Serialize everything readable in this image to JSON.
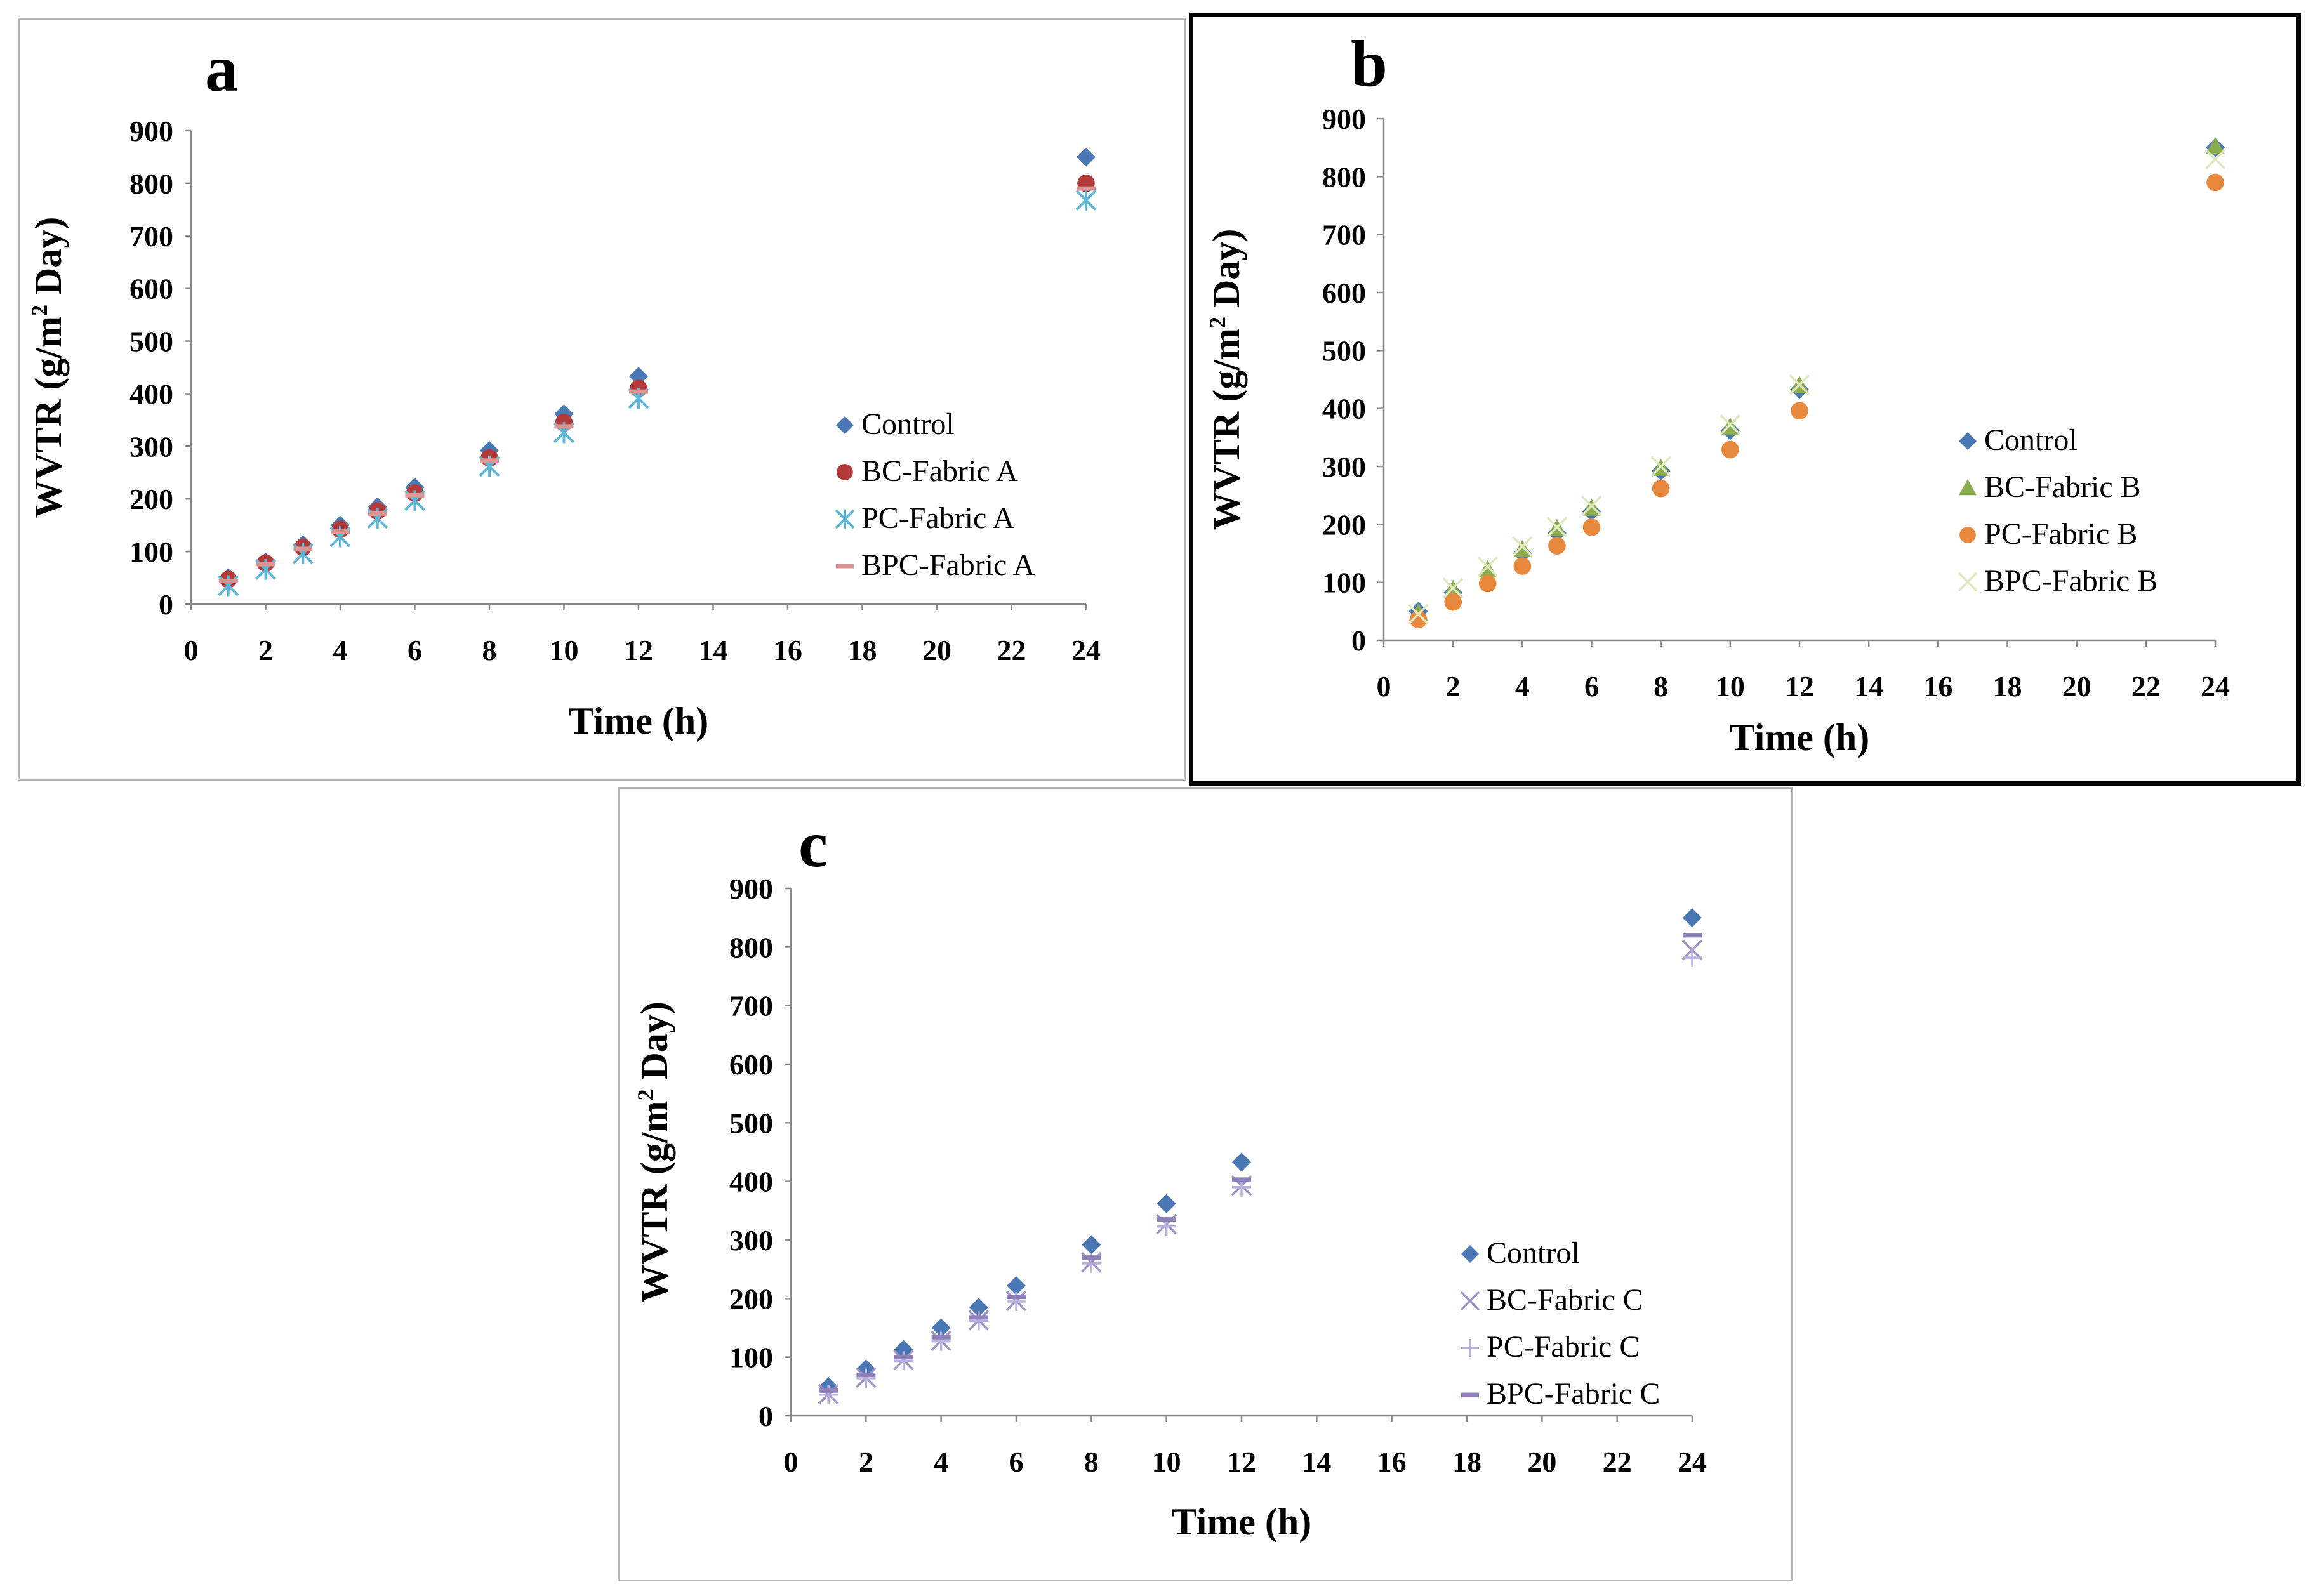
{
  "chart_data": [
    {
      "type": "scatter",
      "panel_label": "a",
      "title": "",
      "xlabel": "Time (h)",
      "ylabel": "WVTR (g/m² Day)",
      "ylabel_parts": [
        "WVTR (g/m",
        "2",
        " Day)"
      ],
      "xlim": [
        0,
        24
      ],
      "ylim": [
        0,
        900
      ],
      "xticks": [
        0,
        2,
        4,
        6,
        8,
        10,
        12,
        14,
        16,
        18,
        20,
        22,
        24
      ],
      "yticks": [
        0,
        100,
        200,
        300,
        400,
        500,
        600,
        700,
        800,
        900
      ],
      "grid": false,
      "legend_position": "right",
      "x": [
        1,
        2,
        3,
        4,
        5,
        6,
        8,
        10,
        12,
        24
      ],
      "series": [
        {
          "name": "Control",
          "marker": "diamond",
          "color": "#4a78b5",
          "values": [
            50,
            80,
            113,
            150,
            185,
            222,
            292,
            362,
            433,
            850
          ]
        },
        {
          "name": "BC-Fabric A",
          "marker": "circle",
          "color": "#b23a38",
          "values": [
            47,
            78,
            108,
            142,
            177,
            211,
            278,
            345,
            410,
            800
          ]
        },
        {
          "name": "PC-Fabric A",
          "marker": "asterisk",
          "color": "#5bb6d6",
          "values": [
            35,
            66,
            96,
            128,
            163,
            197,
            262,
            326,
            391,
            768
          ]
        },
        {
          "name": "BPC-Fabric A",
          "marker": "dash",
          "color": "#d99694",
          "values": [
            44,
            76,
            105,
            138,
            172,
            207,
            273,
            338,
            404,
            790
          ]
        }
      ]
    },
    {
      "type": "scatter",
      "panel_label": "b",
      "title": "",
      "xlabel": "Time (h)",
      "ylabel": "WVTR (g/m² Day)",
      "ylabel_parts": [
        "WVTR (g/m",
        "2",
        " Day)"
      ],
      "xlim": [
        0,
        24
      ],
      "ylim": [
        0,
        900
      ],
      "xticks": [
        0,
        2,
        4,
        6,
        8,
        10,
        12,
        14,
        16,
        18,
        20,
        22,
        24
      ],
      "yticks": [
        0,
        100,
        200,
        300,
        400,
        500,
        600,
        700,
        800,
        900
      ],
      "grid": false,
      "legend_position": "right",
      "x": [
        1,
        2,
        3,
        4,
        5,
        6,
        8,
        10,
        12,
        24
      ],
      "series": [
        {
          "name": "Control",
          "marker": "diamond",
          "color": "#4a78b5",
          "values": [
            50,
            82,
            113,
            150,
            185,
            222,
            292,
            362,
            433,
            850
          ]
        },
        {
          "name": "BC-Fabric B",
          "marker": "triangle",
          "color": "#8bab4f",
          "values": [
            47,
            88,
            122,
            157,
            193,
            228,
            297,
            368,
            440,
            852
          ]
        },
        {
          "name": "PC-Fabric B",
          "marker": "circle",
          "color": "#e8883c",
          "values": [
            36,
            66,
            98,
            128,
            163,
            195,
            262,
            329,
            396,
            790
          ]
        },
        {
          "name": "BPC-Fabric B",
          "marker": "cross",
          "color": "#dfe8c0",
          "values": [
            45,
            90,
            127,
            162,
            195,
            232,
            300,
            372,
            441,
            830
          ]
        }
      ]
    },
    {
      "type": "scatter",
      "panel_label": "c",
      "title": "",
      "xlabel": "Time (h)",
      "ylabel": "WVTR (g/m² Day)",
      "ylabel_parts": [
        "WVTR (g/m",
        "2",
        " Day)"
      ],
      "xlim": [
        0,
        24
      ],
      "ylim": [
        0,
        900
      ],
      "xticks": [
        0,
        2,
        4,
        6,
        8,
        10,
        12,
        14,
        16,
        18,
        20,
        22,
        24
      ],
      "yticks": [
        0,
        100,
        200,
        300,
        400,
        500,
        600,
        700,
        800,
        900
      ],
      "grid": false,
      "legend_position": "right",
      "x": [
        1,
        2,
        3,
        4,
        5,
        6,
        8,
        10,
        12,
        24
      ],
      "series": [
        {
          "name": "Control",
          "marker": "diamond",
          "color": "#4a78b5",
          "values": [
            50,
            80,
            113,
            150,
            185,
            222,
            292,
            362,
            433,
            850
          ]
        },
        {
          "name": "BC-Fabric C",
          "marker": "cross",
          "color": "#9e93c4",
          "values": [
            37,
            65,
            95,
            128,
            163,
            196,
            262,
            327,
            393,
            795
          ]
        },
        {
          "name": "PC-Fabric C",
          "marker": "plus",
          "color": "#b8b0e0",
          "values": [
            36,
            64,
            94,
            127,
            162,
            195,
            260,
            323,
            390,
            782
          ]
        },
        {
          "name": "BPC-Fabric C",
          "marker": "dash",
          "color": "#8f7fb8",
          "values": [
            43,
            70,
            100,
            134,
            168,
            203,
            270,
            335,
            403,
            820
          ]
        }
      ]
    }
  ]
}
